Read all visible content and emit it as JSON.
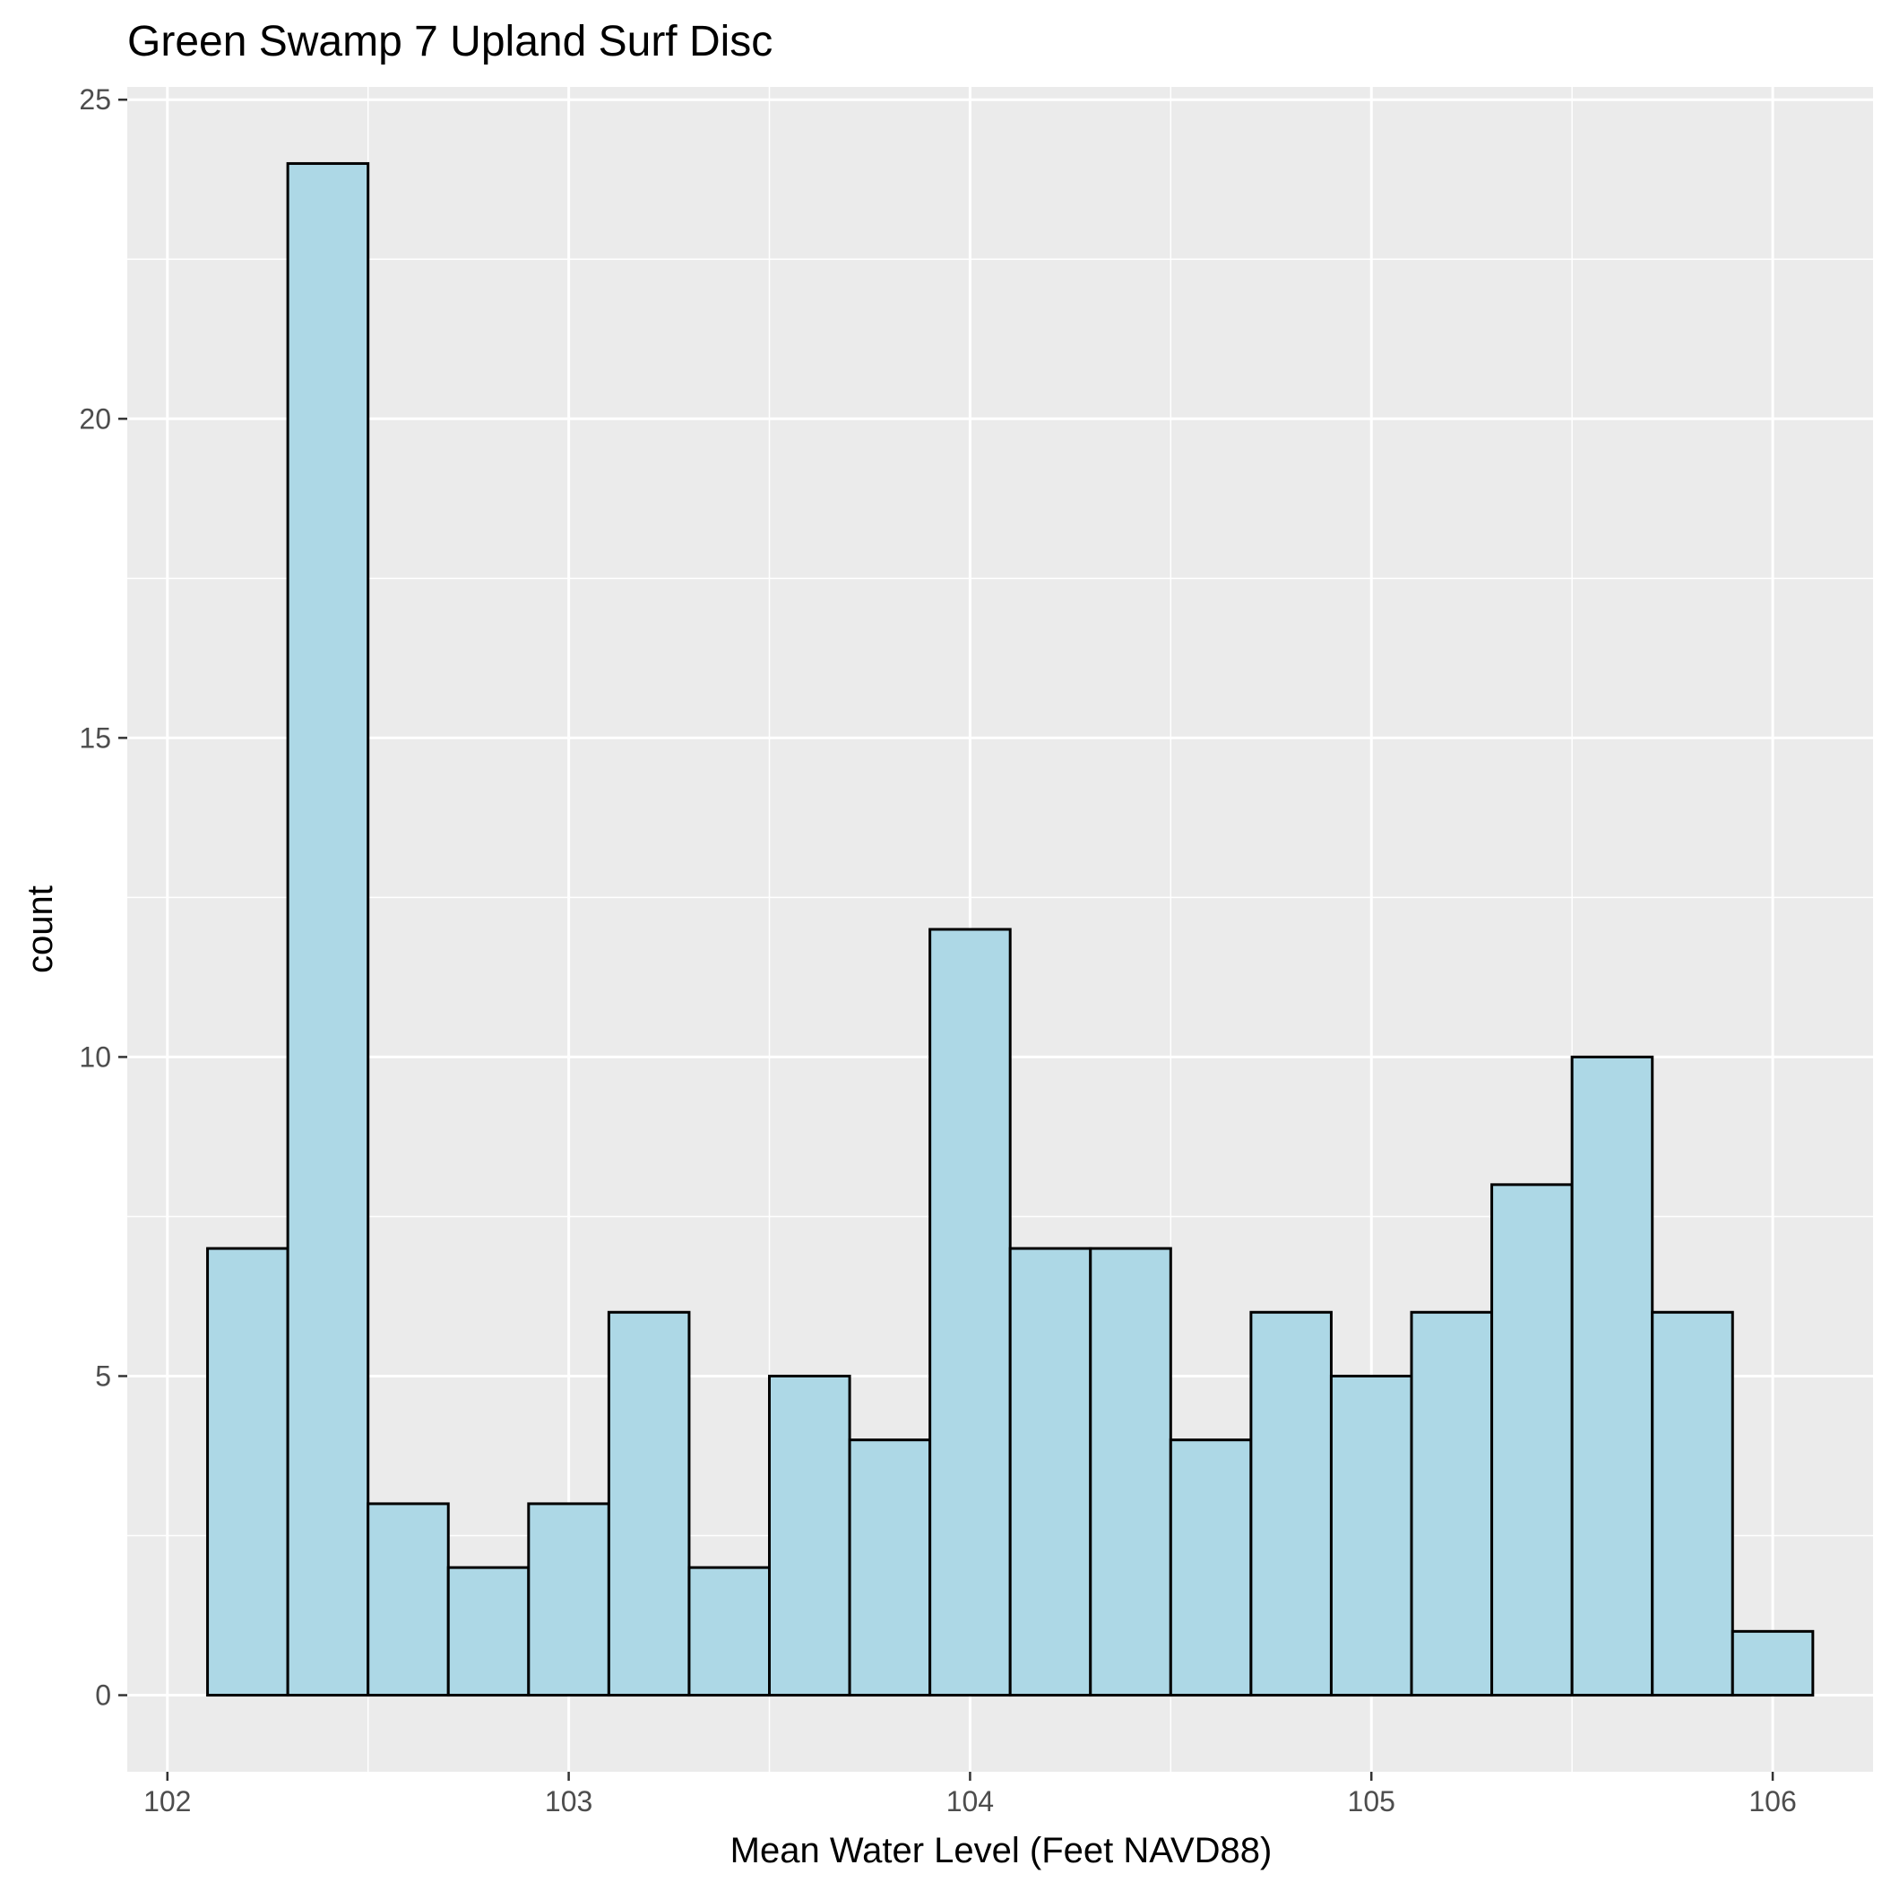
{
  "chart_data": {
    "type": "bar",
    "title": "Green Swamp 7 Upland Surf Disc",
    "xlabel": "Mean Water Level (Feet NAVD88)",
    "ylabel": "count",
    "xlim": [
      101.9,
      106.25
    ],
    "ylim": [
      -1.2,
      25.2
    ],
    "x_ticks": [
      102,
      103,
      104,
      105,
      106
    ],
    "y_ticks": [
      0,
      5,
      10,
      15,
      20,
      25
    ],
    "bin_width": 0.2,
    "bins": [
      {
        "x0": 102.1,
        "x1": 102.3,
        "count": 7
      },
      {
        "x0": 102.3,
        "x1": 102.5,
        "count": 24
      },
      {
        "x0": 102.5,
        "x1": 102.7,
        "count": 3
      },
      {
        "x0": 102.7,
        "x1": 102.9,
        "count": 2
      },
      {
        "x0": 102.9,
        "x1": 103.1,
        "count": 3
      },
      {
        "x0": 103.1,
        "x1": 103.3,
        "count": 6
      },
      {
        "x0": 103.3,
        "x1": 103.5,
        "count": 2
      },
      {
        "x0": 103.5,
        "x1": 103.7,
        "count": 5
      },
      {
        "x0": 103.7,
        "x1": 103.9,
        "count": 4
      },
      {
        "x0": 103.9,
        "x1": 104.1,
        "count": 12
      },
      {
        "x0": 104.1,
        "x1": 104.3,
        "count": 7
      },
      {
        "x0": 104.3,
        "x1": 104.5,
        "count": 7
      },
      {
        "x0": 104.5,
        "x1": 104.7,
        "count": 4
      },
      {
        "x0": 104.7,
        "x1": 104.9,
        "count": 6
      },
      {
        "x0": 104.9,
        "x1": 105.1,
        "count": 5
      },
      {
        "x0": 105.1,
        "x1": 105.3,
        "count": 6
      },
      {
        "x0": 105.3,
        "x1": 105.5,
        "count": 8
      },
      {
        "x0": 105.5,
        "x1": 105.7,
        "count": 10
      },
      {
        "x0": 105.7,
        "x1": 105.9,
        "count": 6
      },
      {
        "x0": 105.9,
        "x1": 106.1,
        "count": 1
      }
    ],
    "grid": true,
    "legend": "none",
    "colors": {
      "panel_background": "#ebebeb",
      "grid_line": "#ffffff",
      "bar_fill": "#add8e6",
      "bar_outline": "#000000",
      "tick_mark": "#333333"
    }
  }
}
